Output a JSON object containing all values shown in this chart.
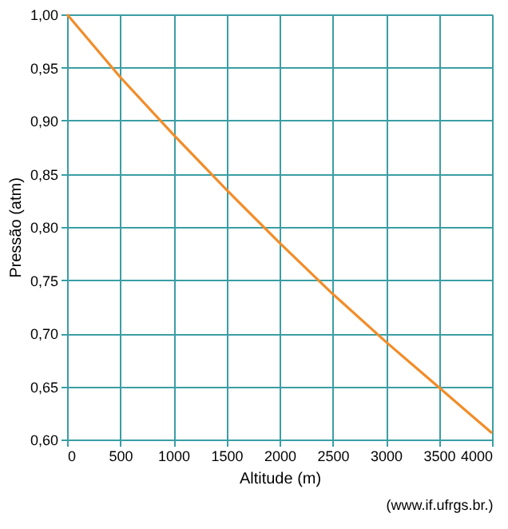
{
  "chart_data": {
    "type": "line",
    "xlabel": "Altitude (m)",
    "ylabel": "Pressão (atm)",
    "x": [
      0,
      500,
      1000,
      1500,
      2000,
      2500,
      3000,
      3500,
      4000
    ],
    "series": [
      {
        "color": "#f28c28",
        "values": [
          1.0,
          0.941,
          0.887,
          0.835,
          0.785,
          0.737,
          0.692,
          0.649,
          0.606
        ]
      }
    ],
    "xlim": [
      0,
      4000
    ],
    "xticks": [
      0,
      500,
      1000,
      1500,
      2000,
      2500,
      3000,
      3500,
      4000
    ],
    "ylim": [
      0.6,
      1.0
    ],
    "yticks": [
      {
        "value": 0.6,
        "label": "0,60"
      },
      {
        "value": 0.65,
        "label": "0,65"
      },
      {
        "value": 0.7,
        "label": "0,70"
      },
      {
        "value": 0.75,
        "label": "0,75"
      },
      {
        "value": 0.8,
        "label": "0,80"
      },
      {
        "value": 0.85,
        "label": "0,85"
      },
      {
        "value": 0.9,
        "label": "0,90"
      },
      {
        "value": 0.95,
        "label": "0,95"
      },
      {
        "value": 1.0,
        "label": "1,00"
      }
    ],
    "grid": true,
    "marker": "none",
    "line_style": "solid",
    "annotations": [
      "(www.if.ufrgs.br.)"
    ]
  }
}
